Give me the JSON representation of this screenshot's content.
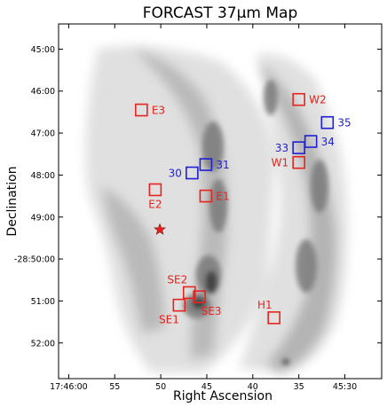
{
  "figure": {
    "title": "FORCAST 37μm Map",
    "xlabel": "Right Ascension",
    "ylabel": "Declination"
  },
  "colors": {
    "red": "#e8231d",
    "blue": "#1f1fd6",
    "frame": "#000000"
  },
  "axes": {
    "xticks": [
      "17:46:00",
      "55",
      "50",
      "45",
      "40",
      "35",
      "45:30"
    ],
    "yticks": [
      "45:00",
      "46:00",
      "47:00",
      "48:00",
      "49:00",
      "-28:50:00",
      "51:00",
      "52:00"
    ]
  },
  "chart_data": {
    "type": "scatter",
    "title": "FORCAST 37μm Map",
    "xlabel": "Right Ascension",
    "ylabel": "Declination",
    "x_units": "seconds of RA after 17:45:00",
    "y_units": "arcmin offset from -28:45:00 (increasing downward)",
    "xlim": [
      61.1,
      26.0
    ],
    "ylim": [
      44.4,
      52.85
    ],
    "markers": [
      {
        "label": "W2",
        "ra": 35.0,
        "dec": 46.2,
        "color": "red",
        "label_side": "right"
      },
      {
        "label": "E3",
        "ra": 52.1,
        "dec": 46.45,
        "color": "red",
        "label_side": "right"
      },
      {
        "label": "35",
        "ra": 31.9,
        "dec": 46.75,
        "color": "blue",
        "label_side": "right"
      },
      {
        "label": "34",
        "ra": 33.7,
        "dec": 47.2,
        "color": "blue",
        "label_side": "right"
      },
      {
        "label": "33",
        "ra": 35.0,
        "dec": 47.35,
        "color": "blue",
        "label_side": "left"
      },
      {
        "label": "W1",
        "ra": 35.0,
        "dec": 47.7,
        "color": "red",
        "label_side": "left"
      },
      {
        "label": "31",
        "ra": 45.1,
        "dec": 47.75,
        "color": "blue",
        "label_side": "right"
      },
      {
        "label": "30",
        "ra": 46.6,
        "dec": 47.95,
        "color": "blue",
        "label_side": "left"
      },
      {
        "label": "E2",
        "ra": 50.6,
        "dec": 48.35,
        "color": "red",
        "label_side": "below"
      },
      {
        "label": "E1",
        "ra": 45.1,
        "dec": 48.5,
        "color": "red",
        "label_side": "right"
      },
      {
        "label": "SE2",
        "ra": 46.9,
        "dec": 50.8,
        "color": "red",
        "label_side": "above-left"
      },
      {
        "label": "SE3",
        "ra": 45.8,
        "dec": 50.9,
        "color": "red",
        "label_side": "below-right"
      },
      {
        "label": "SE1",
        "ra": 48.0,
        "dec": 51.1,
        "color": "red",
        "label_side": "below-left"
      },
      {
        "label": "H1",
        "ra": 37.7,
        "dec": 51.4,
        "color": "red",
        "label_side": "above-left"
      }
    ],
    "star": {
      "ra": 50.1,
      "dec": 49.3,
      "color": "red"
    }
  }
}
